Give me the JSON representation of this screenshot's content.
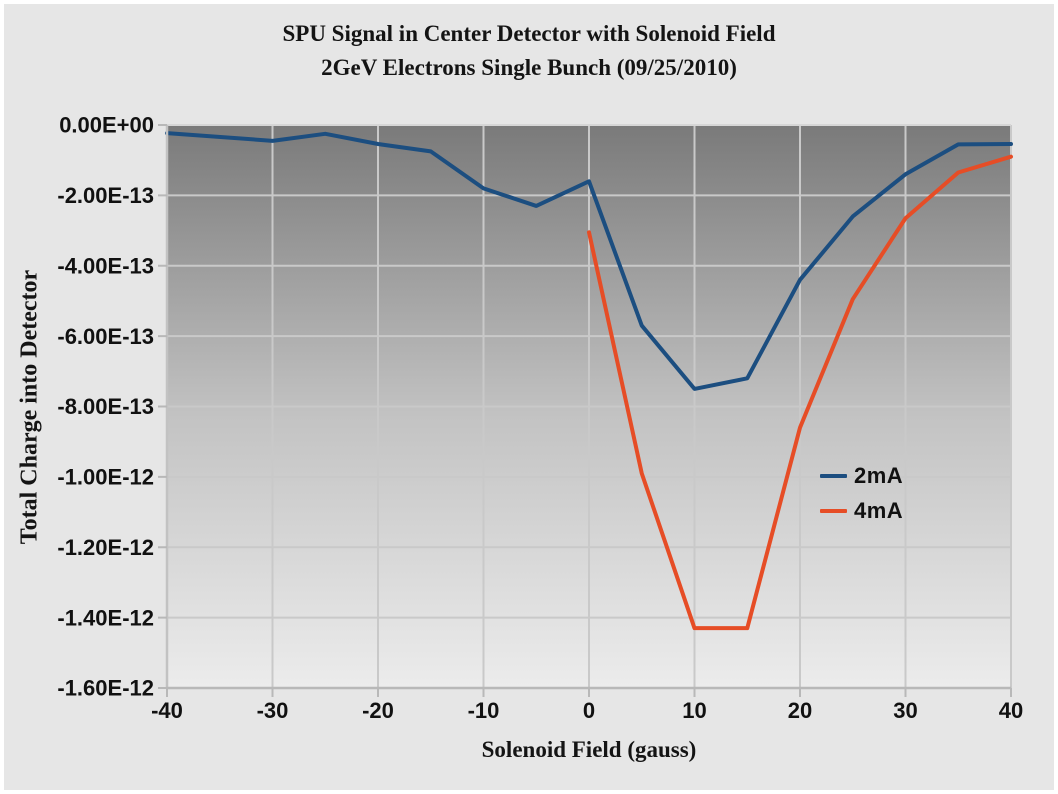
{
  "chart_data": {
    "type": "line",
    "title": "SPU Signal in Center Detector with Solenoid Field",
    "subtitle": "2GeV Electrons Single Bunch (09/25/2010)",
    "xlabel": "Solenoid Field (gauss)",
    "ylabel": "Total Charge into Detector",
    "xlim": [
      -40,
      40
    ],
    "ylim": [
      -1.6e-12,
      0
    ],
    "grid": true,
    "legend_position": "middle-right",
    "plot_background": "gray-gradient-dark-top-to-light-bottom",
    "x_ticks": {
      "values": [
        -40,
        -30,
        -20,
        -10,
        0,
        10,
        20,
        30,
        40
      ],
      "labels": [
        "-40",
        "-30",
        "-20",
        "-10",
        "0",
        "10",
        "20",
        "30",
        "40"
      ]
    },
    "y_ticks": {
      "values": [
        0,
        -2e-13,
        -4e-13,
        -6e-13,
        -8e-13,
        -1e-12,
        -1.2e-12,
        -1.4e-12,
        -1.6e-12
      ],
      "labels": [
        "0.00E+00",
        "-2.00E-13",
        "-4.00E-13",
        "-6.00E-13",
        "-8.00E-13",
        "-1.00E-12",
        "-1.20E-12",
        "-1.40E-12",
        "-1.60E-12"
      ]
    },
    "series": [
      {
        "name": "2mA",
        "color": "#1C4E80",
        "x": [
          -40,
          -30,
          -25,
          -20,
          -15,
          -10,
          -5,
          0,
          5,
          10,
          15,
          20,
          25,
          30,
          35,
          40
        ],
        "y": [
          -2.3e-14,
          -4.5e-14,
          -2.5e-14,
          -5.4e-14,
          -7.5e-14,
          -1.8e-13,
          -2.3e-13,
          -1.6e-13,
          -5.7e-13,
          -7.5e-13,
          -7.2e-13,
          -4.4e-13,
          -2.6e-13,
          -1.4e-13,
          -5.5e-14,
          -5.4e-14
        ]
      },
      {
        "name": "4mA",
        "color": "#E64D26",
        "x": [
          0,
          5,
          10,
          15,
          20,
          25,
          30,
          35,
          40
        ],
        "y": [
          -3.05e-13,
          -9.9e-13,
          -1.43e-12,
          -1.43e-12,
          -8.6e-13,
          -4.95e-13,
          -2.65e-13,
          -1.35e-13,
          -9e-14
        ]
      }
    ]
  }
}
